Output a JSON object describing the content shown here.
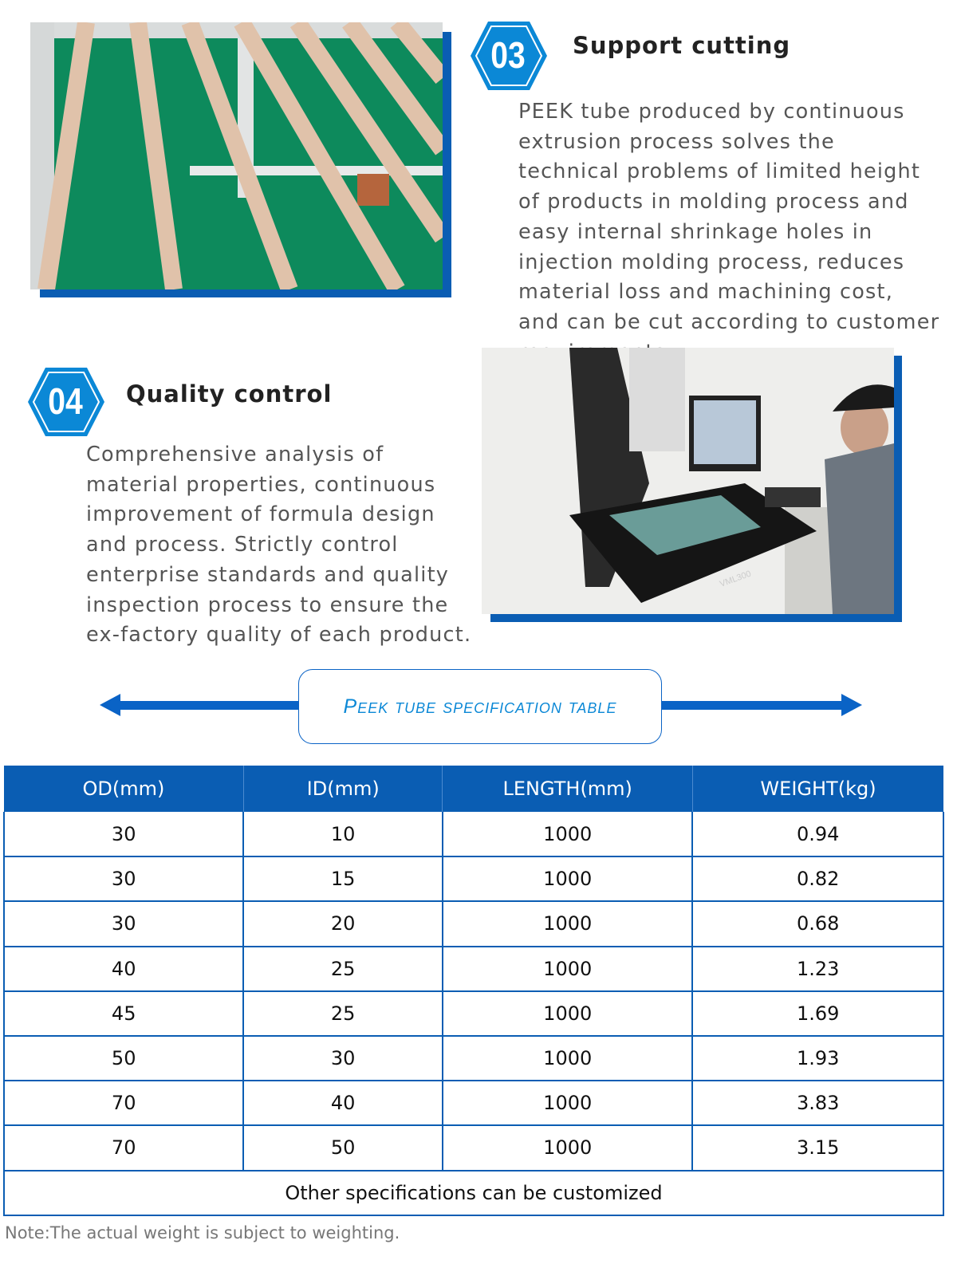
{
  "sections": [
    {
      "number": "03",
      "title": "Support cutting",
      "text": "PEEK tube produced by continuous extrusion process solves the technical problems of limited height of products in molding process and easy internal shrinkage holes in injection molding process, reduces material loss and machining cost, and can be cut according to customer requirements."
    },
    {
      "number": "04",
      "title": "Quality control",
      "text": "Comprehensive analysis of material properties, continuous improvement of formula design and process. Strictly control enterprise standards and quality inspection process to ensure the ex-factory quality of each product."
    }
  ],
  "photo_label": "VML300",
  "banner": {
    "title": "Peek tube specification table"
  },
  "colors": {
    "accent": "#0a5db3",
    "hex": "#0b88d6"
  },
  "table": {
    "headers": [
      "OD(mm)",
      "ID(mm)",
      "LENGTH(mm)",
      "WEIGHT(kg)"
    ],
    "rows": [
      [
        "30",
        "10",
        "1000",
        "0.94"
      ],
      [
        "30",
        "15",
        "1000",
        "0.82"
      ],
      [
        "30",
        "20",
        "1000",
        "0.68"
      ],
      [
        "40",
        "25",
        "1000",
        "1.23"
      ],
      [
        "45",
        "25",
        "1000",
        "1.69"
      ],
      [
        "50",
        "30",
        "1000",
        "1.93"
      ],
      [
        "70",
        "40",
        "1000",
        "3.83"
      ],
      [
        "70",
        "50",
        "1000",
        "3.15"
      ]
    ],
    "footer": "Other specifications can be customized"
  },
  "note": "Note:The actual weight is subject to weighting."
}
